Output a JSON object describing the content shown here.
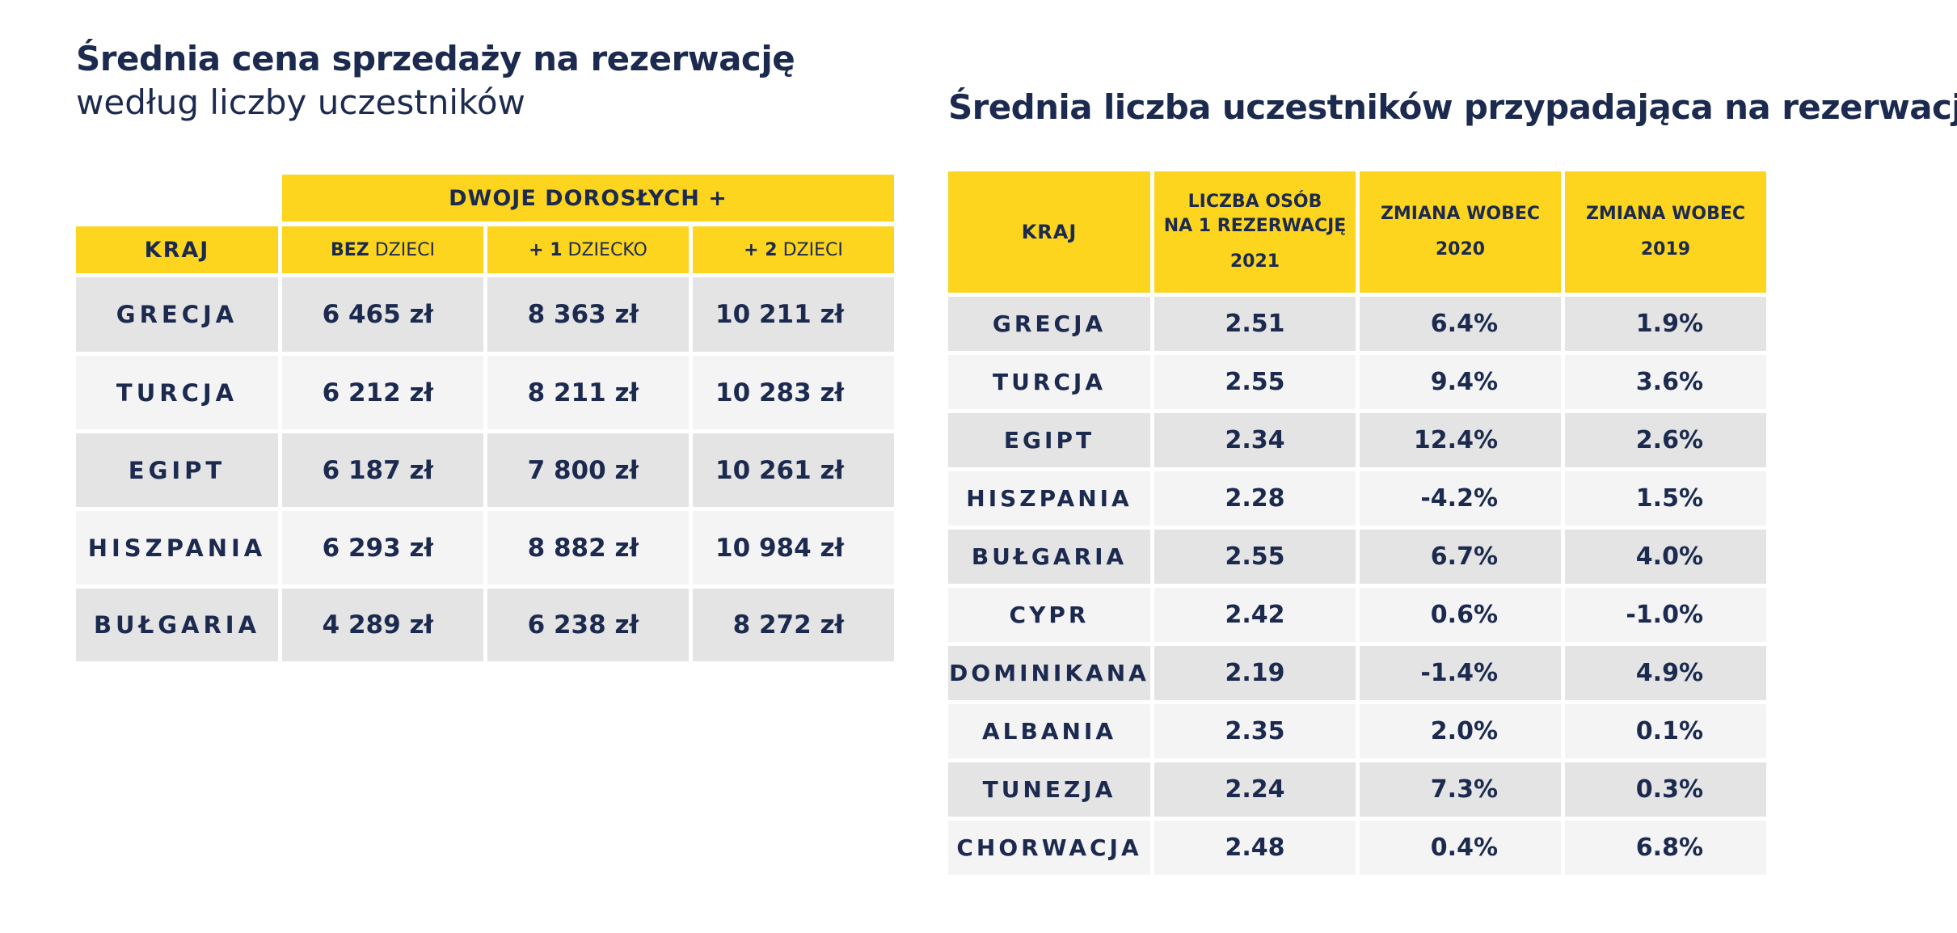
{
  "left": {
    "title": "Średnia cena sprzedaży na rezerwację",
    "subtitle": "według liczby uczestników",
    "group_header": "DWOJE DOROSŁYCH +",
    "columns": {
      "country": "KRAJ",
      "c1_bold": "BEZ",
      "c1_rest": " DZIECI",
      "c2_bold": "+ 1",
      "c2_rest": " DZIECKO",
      "c3_bold": "+ 2",
      "c3_rest": " DZIECI"
    },
    "rows": [
      {
        "country": "GRECJA",
        "v1": "6 465 zł",
        "v2": "8 363 zł",
        "v3": "10 211 zł"
      },
      {
        "country": "TURCJA",
        "v1": "6 212 zł",
        "v2": "8 211 zł",
        "v3": "10 283 zł"
      },
      {
        "country": "EGIPT",
        "v1": "6 187 zł",
        "v2": "7 800 zł",
        "v3": "10 261 zł"
      },
      {
        "country": "HISZPANIA",
        "v1": "6 293 zł",
        "v2": "8 882 zł",
        "v3": "10 984 zł"
      },
      {
        "country": "BUŁGARIA",
        "v1": "4 289 zł",
        "v2": "6 238 zł",
        "v3": "8 272 zł"
      }
    ]
  },
  "right": {
    "title": "Średnia liczba uczestników przypadająca na rezerwację",
    "columns": {
      "country": "KRAJ",
      "c1_line1": "LICZBA OSÓB",
      "c1_line2": "NA 1 REZERWACJĘ",
      "c1_year": "2021",
      "c2_line1": "ZMIANA WOBEC",
      "c2_year": "2020",
      "c3_line1": "ZMIANA WOBEC",
      "c3_year": "2019"
    },
    "rows": [
      {
        "country": "GRECJA",
        "v1": "2.51",
        "v2": "6.4%",
        "v3": "1.9%"
      },
      {
        "country": "TURCJA",
        "v1": "2.55",
        "v2": "9.4%",
        "v3": "3.6%"
      },
      {
        "country": "EGIPT",
        "v1": "2.34",
        "v2": "12.4%",
        "v3": "2.6%"
      },
      {
        "country": "HISZPANIA",
        "v1": "2.28",
        "v2": "-4.2%",
        "v3": "1.5%"
      },
      {
        "country": "BUŁGARIA",
        "v1": "2.55",
        "v2": "6.7%",
        "v3": "4.0%"
      },
      {
        "country": "CYPR",
        "v1": "2.42",
        "v2": "0.6%",
        "v3": "-1.0%"
      },
      {
        "country": "DOMINIKANA",
        "v1": "2.19",
        "v2": "-1.4%",
        "v3": "4.9%"
      },
      {
        "country": "ALBANIA",
        "v1": "2.35",
        "v2": "2.0%",
        "v3": "0.1%"
      },
      {
        "country": "TUNEZJA",
        "v1": "2.24",
        "v2": "7.3%",
        "v3": "0.3%"
      },
      {
        "country": "CHORWACJA",
        "v1": "2.48",
        "v2": "0.4%",
        "v3": "6.8%"
      }
    ]
  },
  "colors": {
    "accent_yellow": "#fdd41e",
    "text_navy": "#1b2a4e",
    "row_dark": "#e4e4e4",
    "row_light": "#f5f4f5"
  }
}
